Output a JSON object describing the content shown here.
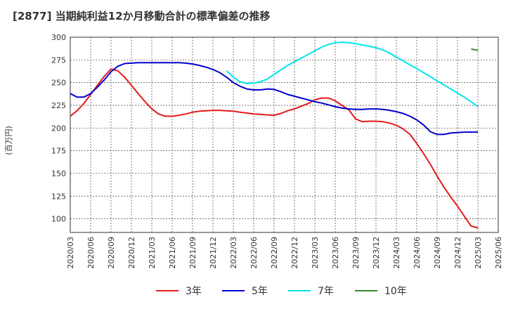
{
  "chart_data": {
    "type": "line",
    "title": "[2877]  当期純利益12か月移動合計の標準偏差の推移",
    "ylabel": "(百万円)",
    "xlabel": "",
    "ylim": [
      85,
      300
    ],
    "yticks": [
      100,
      125,
      150,
      175,
      200,
      225,
      250,
      275,
      300
    ],
    "grid": true,
    "legend_position": "bottom",
    "categories": [
      "2020/03",
      "2020/06",
      "2020/09",
      "2020/12",
      "2021/03",
      "2021/06",
      "2021/09",
      "2021/12",
      "2022/03",
      "2022/06",
      "2022/09",
      "2022/12",
      "2023/03",
      "2023/06",
      "2023/09",
      "2023/12",
      "2024/03",
      "2024/06",
      "2024/09",
      "2024/12",
      "2025/03",
      "2025/06"
    ],
    "series": [
      {
        "name": "3年",
        "color": "#e41a1c",
        "points": [
          [
            0,
            213
          ],
          [
            0.33,
            219
          ],
          [
            0.67,
            227
          ],
          [
            1,
            237
          ],
          [
            1.33,
            247
          ],
          [
            1.67,
            257
          ],
          [
            2,
            265
          ],
          [
            2.33,
            263
          ],
          [
            2.67,
            256
          ],
          [
            3,
            247
          ],
          [
            3.33,
            238
          ],
          [
            3.67,
            229
          ],
          [
            4,
            221
          ],
          [
            4.33,
            215.5
          ],
          [
            4.67,
            213
          ],
          [
            5,
            213
          ],
          [
            5.33,
            214
          ],
          [
            5.67,
            215.5
          ],
          [
            6,
            217.5
          ],
          [
            6.33,
            218.5
          ],
          [
            6.67,
            219
          ],
          [
            7,
            219.5
          ],
          [
            7.33,
            219.5
          ],
          [
            7.67,
            219
          ],
          [
            8,
            218.5
          ],
          [
            8.33,
            217.5
          ],
          [
            8.67,
            216.5
          ],
          [
            9,
            215.5
          ],
          [
            9.33,
            215
          ],
          [
            9.67,
            214.5
          ],
          [
            10,
            214
          ],
          [
            10.33,
            216
          ],
          [
            10.67,
            219
          ],
          [
            11,
            221
          ],
          [
            11.33,
            224
          ],
          [
            11.67,
            227
          ],
          [
            12,
            231
          ],
          [
            12.33,
            233
          ],
          [
            12.67,
            233
          ],
          [
            13,
            230
          ],
          [
            13.33,
            225
          ],
          [
            13.67,
            220
          ],
          [
            14,
            210
          ],
          [
            14.33,
            207
          ],
          [
            14.67,
            207.5
          ],
          [
            15,
            207.5
          ],
          [
            15.33,
            207
          ],
          [
            15.67,
            205.5
          ],
          [
            16,
            203
          ],
          [
            16.33,
            199
          ],
          [
            16.67,
            193
          ],
          [
            17,
            183
          ],
          [
            17.33,
            172
          ],
          [
            17.67,
            160
          ],
          [
            18,
            147
          ],
          [
            18.33,
            135
          ],
          [
            18.67,
            124
          ],
          [
            19,
            114
          ],
          [
            19.33,
            103
          ],
          [
            19.67,
            92
          ],
          [
            20,
            90
          ]
        ]
      },
      {
        "name": "5年",
        "color": "#0000cd",
        "points": [
          [
            0,
            238
          ],
          [
            0.33,
            234
          ],
          [
            0.67,
            234
          ],
          [
            1,
            238
          ],
          [
            1.33,
            245
          ],
          [
            1.67,
            253
          ],
          [
            2,
            262
          ],
          [
            2.33,
            268
          ],
          [
            2.67,
            271
          ],
          [
            3,
            271.5
          ],
          [
            3.33,
            272
          ],
          [
            3.67,
            272
          ],
          [
            4,
            272
          ],
          [
            4.33,
            272
          ],
          [
            4.67,
            272
          ],
          [
            5,
            272
          ],
          [
            5.33,
            272
          ],
          [
            5.67,
            271.5
          ],
          [
            6,
            270.5
          ],
          [
            6.33,
            269
          ],
          [
            6.67,
            267
          ],
          [
            7,
            264.5
          ],
          [
            7.33,
            261
          ],
          [
            7.67,
            256
          ],
          [
            8,
            250
          ],
          [
            8.33,
            246
          ],
          [
            8.67,
            243
          ],
          [
            9,
            242
          ],
          [
            9.33,
            242
          ],
          [
            9.67,
            243
          ],
          [
            10,
            242.5
          ],
          [
            10.33,
            240
          ],
          [
            10.67,
            237
          ],
          [
            11,
            235
          ],
          [
            11.33,
            233
          ],
          [
            11.67,
            231
          ],
          [
            12,
            229
          ],
          [
            12.33,
            227.5
          ],
          [
            12.67,
            225.5
          ],
          [
            13,
            223.5
          ],
          [
            13.33,
            222
          ],
          [
            13.67,
            221
          ],
          [
            14,
            220.5
          ],
          [
            14.33,
            220.5
          ],
          [
            14.67,
            221
          ],
          [
            15,
            221
          ],
          [
            15.33,
            220.5
          ],
          [
            15.67,
            219.5
          ],
          [
            16,
            218
          ],
          [
            16.33,
            216
          ],
          [
            16.67,
            213
          ],
          [
            17,
            209
          ],
          [
            17.33,
            203.5
          ],
          [
            17.67,
            196
          ],
          [
            18,
            193
          ],
          [
            18.33,
            193
          ],
          [
            18.67,
            194.5
          ],
          [
            19,
            195
          ],
          [
            19.33,
            195.5
          ],
          [
            19.67,
            195.5
          ],
          [
            20,
            195.5
          ]
        ]
      },
      {
        "name": "7年",
        "color": "#00e5ee",
        "points": [
          [
            7.67,
            263
          ],
          [
            8,
            256
          ],
          [
            8.33,
            251
          ],
          [
            8.67,
            249
          ],
          [
            9,
            249.5
          ],
          [
            9.33,
            251
          ],
          [
            9.67,
            254
          ],
          [
            10,
            259
          ],
          [
            10.33,
            264
          ],
          [
            10.67,
            269
          ],
          [
            11,
            273
          ],
          [
            11.33,
            277
          ],
          [
            11.67,
            281
          ],
          [
            12,
            285
          ],
          [
            12.33,
            289
          ],
          [
            12.67,
            292
          ],
          [
            13,
            294
          ],
          [
            13.33,
            294.5
          ],
          [
            13.67,
            294
          ],
          [
            14,
            293
          ],
          [
            14.33,
            291.5
          ],
          [
            14.67,
            290
          ],
          [
            15,
            288.5
          ],
          [
            15.33,
            286
          ],
          [
            15.67,
            282.5
          ],
          [
            16,
            278
          ],
          [
            16.33,
            274
          ],
          [
            16.67,
            269.5
          ],
          [
            17,
            265.5
          ],
          [
            17.33,
            261
          ],
          [
            17.67,
            256.5
          ],
          [
            18,
            252
          ],
          [
            18.33,
            247.5
          ],
          [
            18.67,
            243
          ],
          [
            19,
            238.5
          ],
          [
            19.33,
            234
          ],
          [
            19.67,
            229
          ],
          [
            20,
            223.5
          ]
        ]
      },
      {
        "name": "10年",
        "color": "#2e8b2e",
        "points": [
          [
            19.67,
            287
          ],
          [
            20,
            285.5
          ]
        ]
      }
    ]
  }
}
